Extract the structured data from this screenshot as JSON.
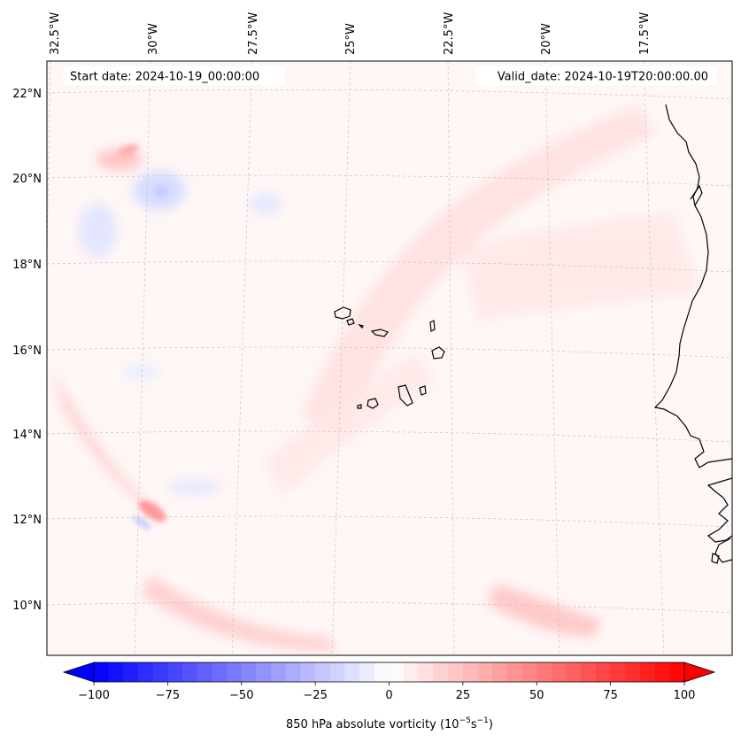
{
  "map": {
    "start_date_label": "Start date: 2024-10-19_00:00:00",
    "valid_date_label": "Valid_date: 2024-10-19T20:00:00.00",
    "lon_labels": [
      "32.5°W",
      "30°W",
      "27.5°W",
      "25°W",
      "22.5°W",
      "20°W",
      "17.5°W"
    ],
    "lat_labels": [
      "22°N",
      "20°N",
      "18°N",
      "16°N",
      "14°N",
      "12°N",
      "10°N"
    ],
    "colors": {
      "background": "#fff6f6",
      "coast": "#000000",
      "grid": "#bbbbbb",
      "pos_weak": "#ffe4e4",
      "pos_med": "#ffc8c8",
      "pos_strong": "#ff8a8a",
      "neg_weak": "#eef0ff",
      "neg_med": "#d6dbff"
    }
  },
  "colorbar": {
    "label": "850 hPa absolute vorticity (10",
    "label_exp1": "−5",
    "label_mid": "s",
    "label_exp2": "−1",
    "label_end": ")",
    "ticks": [
      "−100",
      "−75",
      "−50",
      "−25",
      "0",
      "25",
      "50",
      "75",
      "100"
    ],
    "tick_values": [
      -100,
      -75,
      -50,
      -25,
      0,
      25,
      50,
      75,
      100
    ],
    "range": [
      -100,
      100
    ],
    "steps": 40,
    "min_color": "#0000ff",
    "mid_color": "#ffffff",
    "max_color": "#ff0000"
  }
}
